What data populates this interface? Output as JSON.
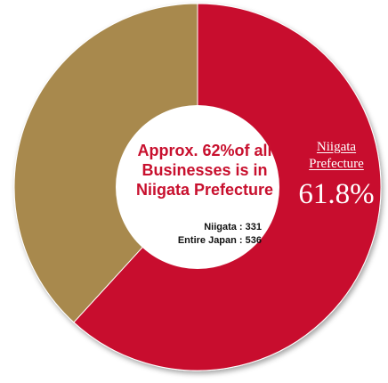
{
  "chart_data": {
    "type": "pie",
    "slices": [
      {
        "name": "Niigata Prefecture",
        "value": 61.8,
        "color": "#c8102e"
      },
      {
        "name": "",
        "value": 38.2,
        "color": "#a8894e"
      }
    ],
    "center_text": [
      "Approx. 62%of all",
      "Businesses is in",
      "Niigata Prefecture"
    ],
    "counts": [
      "Niigata : 331",
      "Entire Japan : 536"
    ],
    "slice_label": {
      "name_lines": [
        "Niigata",
        "Prefecture"
      ],
      "value": "61.8%"
    }
  }
}
